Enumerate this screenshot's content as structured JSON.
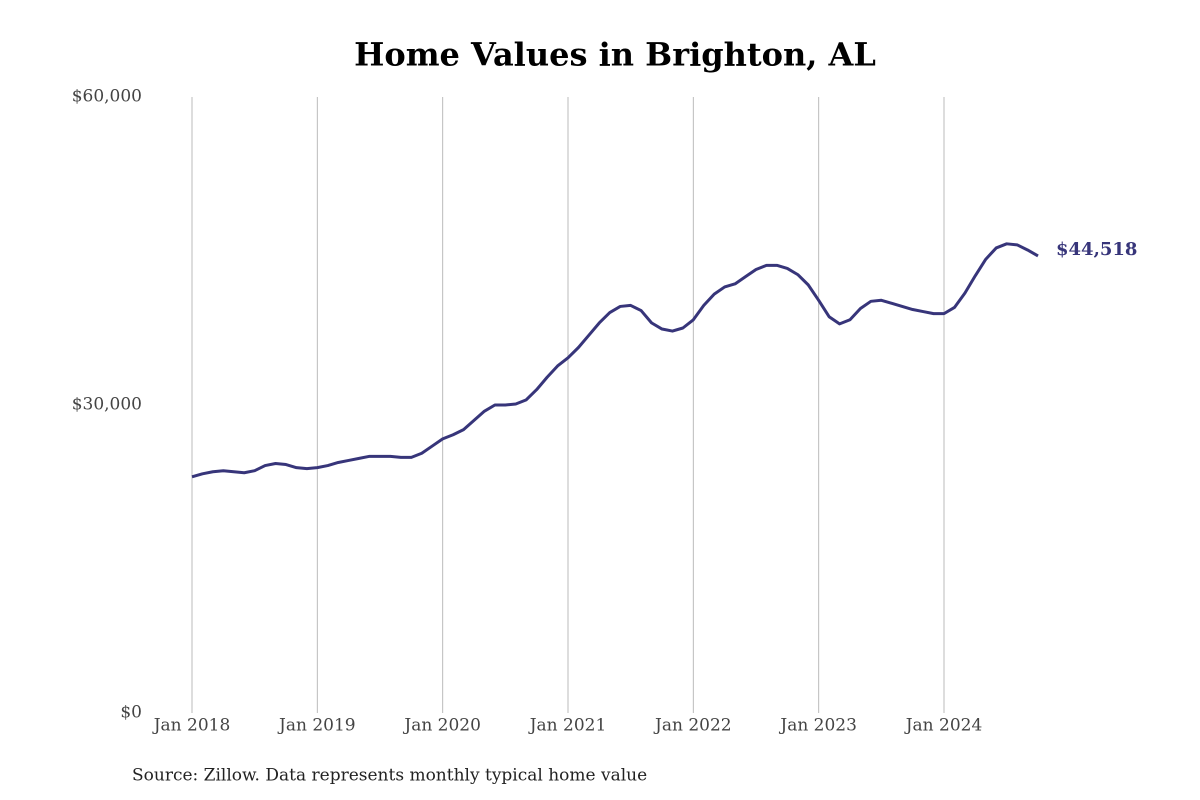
{
  "chart_data": {
    "type": "line",
    "title": "Home Values in Brighton, AL",
    "note": "Source: Zillow. Data represents monthly typical home value",
    "x": [
      "2018-01",
      "2018-02",
      "2018-03",
      "2018-04",
      "2018-05",
      "2018-06",
      "2018-07",
      "2018-08",
      "2018-09",
      "2018-10",
      "2018-11",
      "2018-12",
      "2019-01",
      "2019-02",
      "2019-03",
      "2019-04",
      "2019-05",
      "2019-06",
      "2019-07",
      "2019-08",
      "2019-09",
      "2019-10",
      "2019-11",
      "2019-12",
      "2020-01",
      "2020-02",
      "2020-03",
      "2020-04",
      "2020-05",
      "2020-06",
      "2020-07",
      "2020-08",
      "2020-09",
      "2020-10",
      "2020-11",
      "2020-12",
      "2021-01",
      "2021-02",
      "2021-03",
      "2021-04",
      "2021-05",
      "2021-06",
      "2021-07",
      "2021-08",
      "2021-09",
      "2021-10",
      "2021-11",
      "2021-12",
      "2022-01",
      "2022-02",
      "2022-03",
      "2022-04",
      "2022-05",
      "2022-06",
      "2022-07",
      "2022-08",
      "2022-09",
      "2022-10",
      "2022-11",
      "2022-12",
      "2023-01",
      "2023-02",
      "2023-03",
      "2023-04",
      "2023-05",
      "2023-06",
      "2023-07",
      "2023-08",
      "2023-09",
      "2023-10",
      "2023-11",
      "2023-12",
      "2024-01",
      "2024-02",
      "2024-03",
      "2024-04",
      "2024-05",
      "2024-06",
      "2024-07",
      "2024-08",
      "2024-09",
      "2024-10"
    ],
    "series": [
      {
        "name": "Home value",
        "color": "#37357a",
        "values": [
          23000,
          23300,
          23500,
          23600,
          23500,
          23400,
          23600,
          24100,
          24300,
          24200,
          23900,
          23800,
          23900,
          24100,
          24400,
          24600,
          24800,
          25000,
          25000,
          25000,
          24900,
          24900,
          25300,
          26000,
          26700,
          27100,
          27600,
          28500,
          29400,
          30000,
          30000,
          30100,
          30500,
          31500,
          32700,
          33800,
          34600,
          35600,
          36800,
          38000,
          39000,
          39600,
          39700,
          39200,
          38000,
          37400,
          37200,
          37500,
          38300,
          39700,
          40800,
          41500,
          41800,
          42500,
          43200,
          43600,
          43600,
          43300,
          42700,
          41700,
          40200,
          38600,
          37900,
          38300,
          39400,
          40100,
          40200,
          39900,
          39600,
          39300,
          39100,
          38900,
          38900,
          39500,
          40900,
          42600,
          44200,
          45300,
          45700,
          45600,
          45100,
          44518
        ],
        "value_labels": [
          null,
          null,
          null,
          null,
          null,
          null,
          null,
          null,
          null,
          null,
          null,
          null,
          null,
          null,
          null,
          null,
          null,
          null,
          null,
          null,
          null,
          null,
          null,
          null,
          null,
          null,
          null,
          null,
          null,
          null,
          null,
          null,
          null,
          null,
          null,
          null,
          null,
          null,
          null,
          null,
          null,
          null,
          null,
          null,
          null,
          null,
          null,
          null,
          null,
          null,
          null,
          null,
          null,
          null,
          null,
          null,
          null,
          null,
          null,
          null,
          null,
          null,
          null,
          null,
          null,
          null,
          null,
          null,
          null,
          null,
          null,
          null,
          null,
          null,
          null,
          null,
          null,
          null,
          null,
          null,
          null,
          "$44,518"
        ]
      }
    ],
    "xlim": [
      "2018-01",
      "2024-10"
    ],
    "xticks": [
      {
        "value": "2018-01",
        "label": "Jan 2018"
      },
      {
        "value": "2019-01",
        "label": "Jan 2019"
      },
      {
        "value": "2020-01",
        "label": "Jan 2020"
      },
      {
        "value": "2021-01",
        "label": "Jan 2021"
      },
      {
        "value": "2022-01",
        "label": "Jan 2022"
      },
      {
        "value": "2023-01",
        "label": "Jan 2023"
      },
      {
        "value": "2024-01",
        "label": "Jan 2024"
      }
    ],
    "ylim": [
      0,
      60000
    ],
    "yticks": [
      {
        "value": 0,
        "label": "$0"
      },
      {
        "value": 30000,
        "label": "$30,000"
      },
      {
        "value": 60000,
        "label": "$60,000"
      }
    ],
    "grid": "x"
  }
}
